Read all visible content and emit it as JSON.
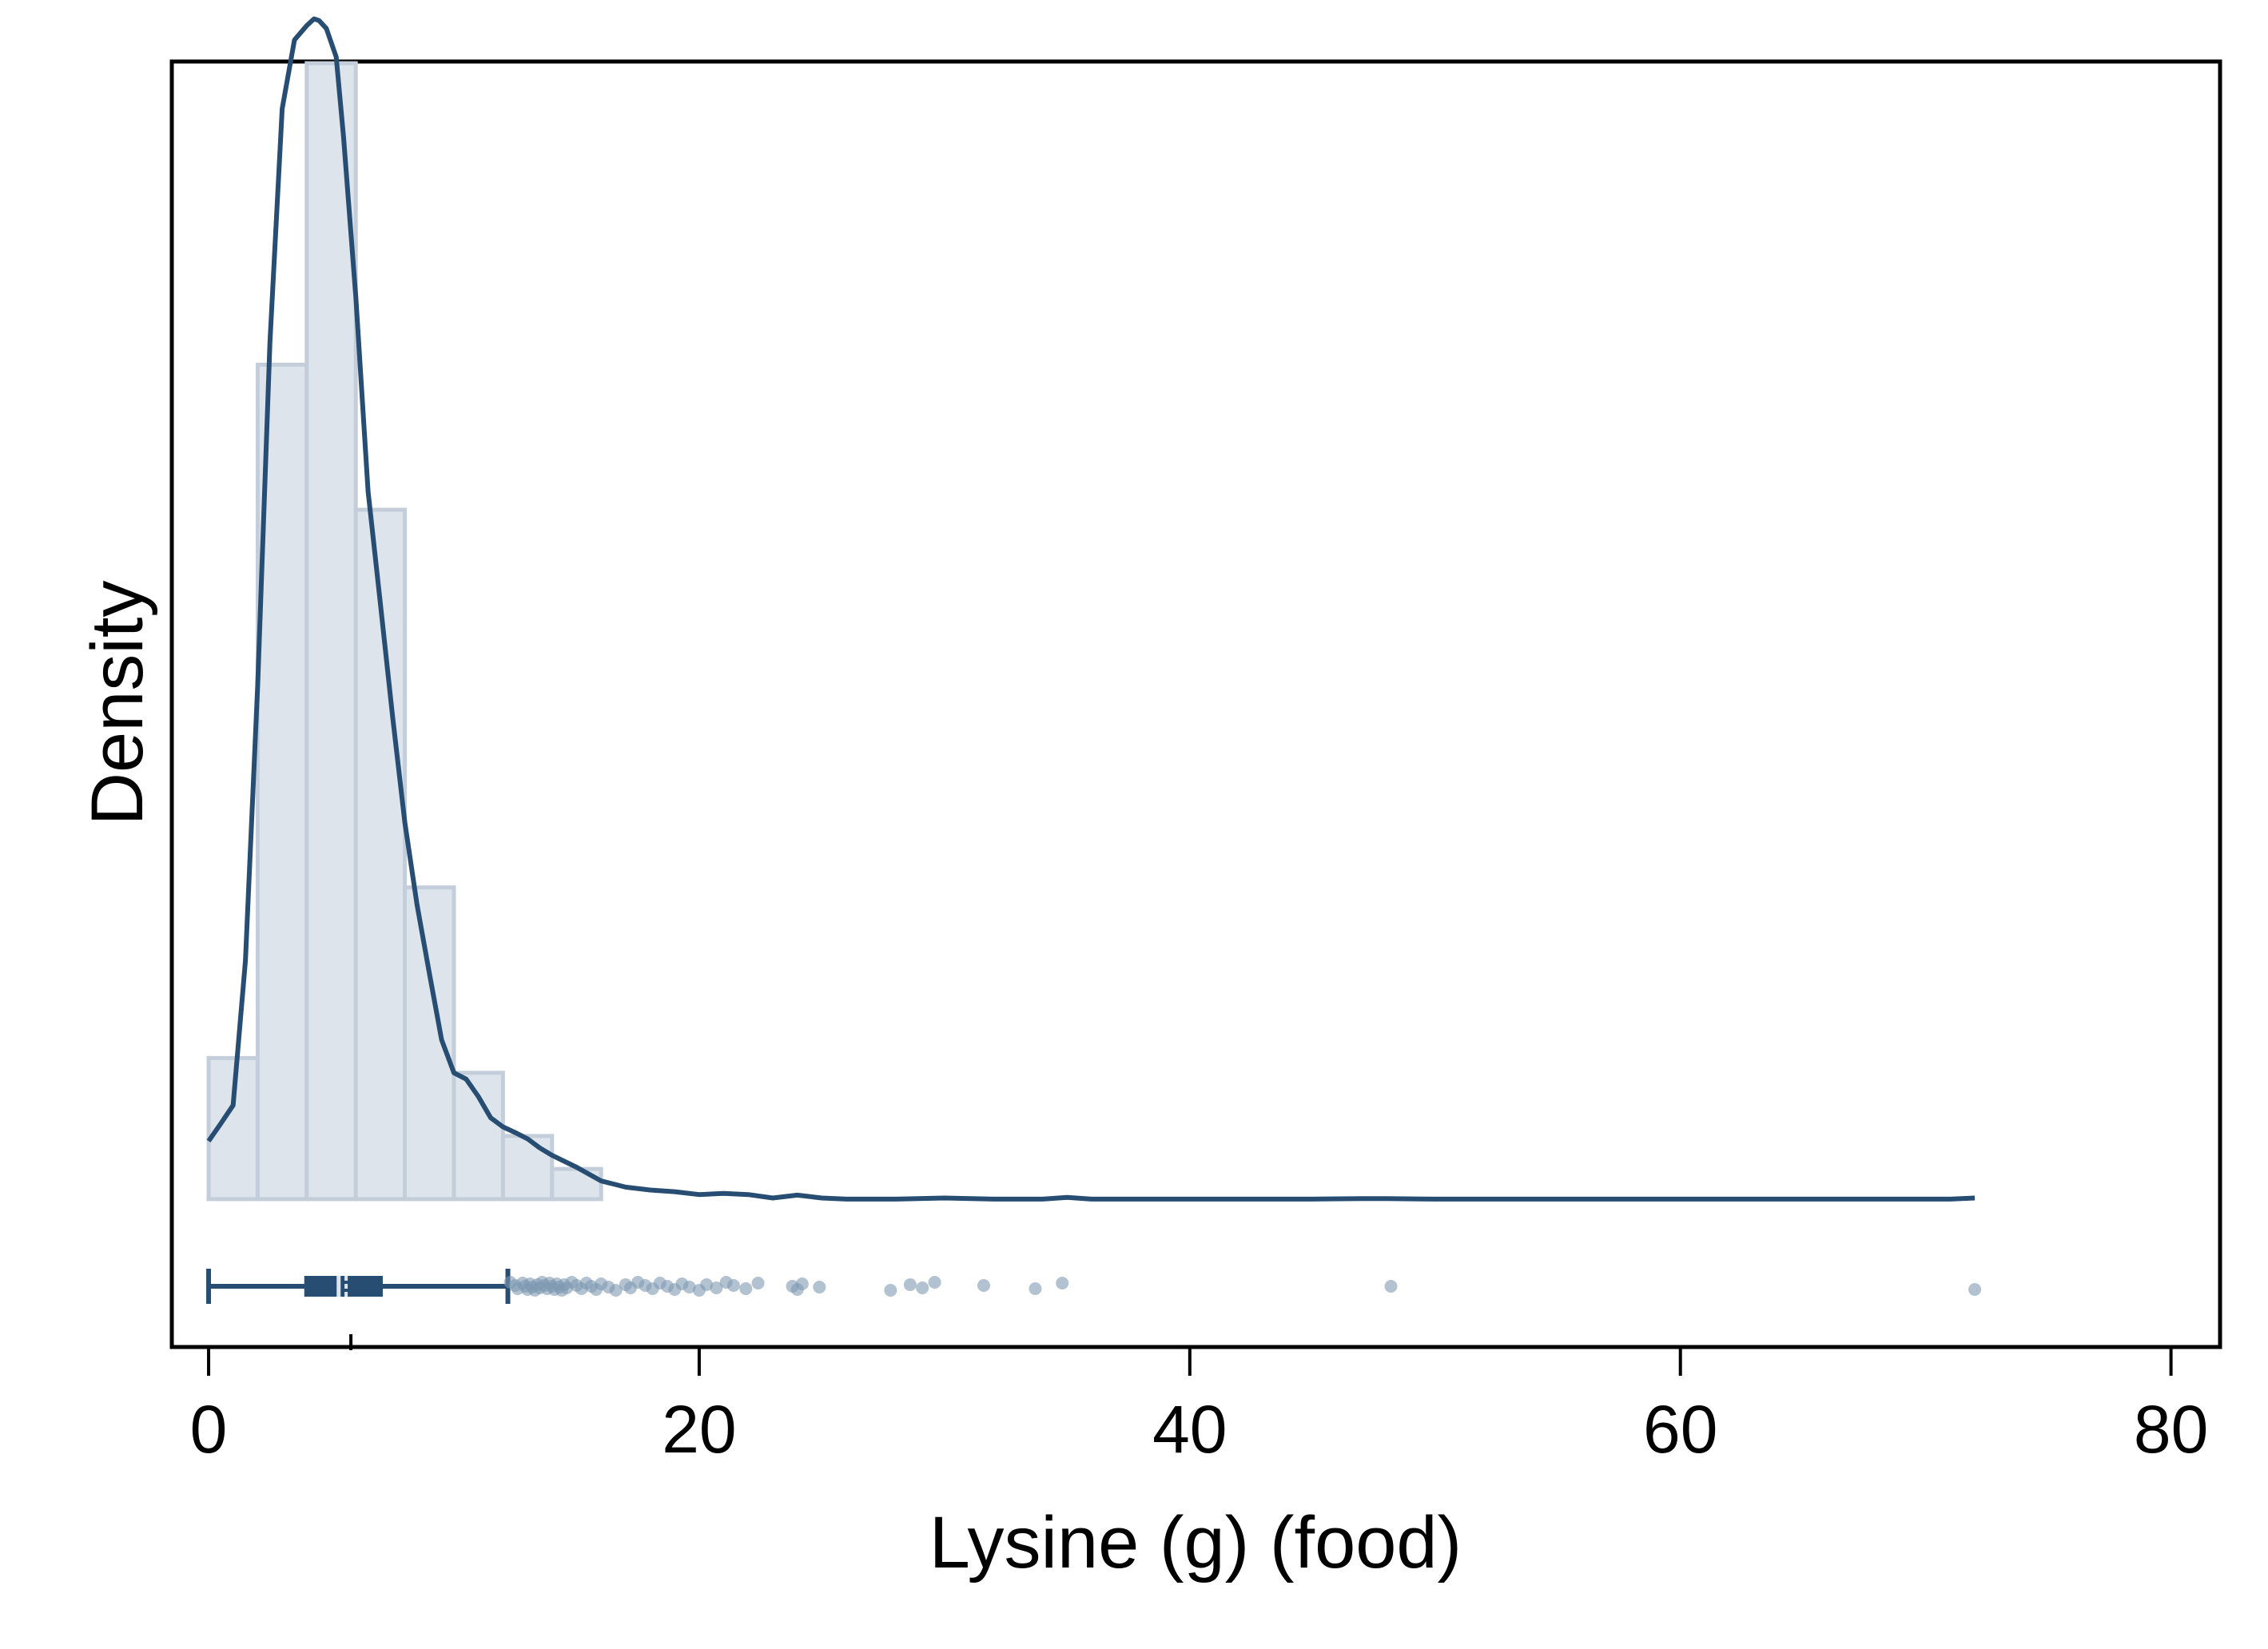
{
  "chart_data": {
    "type": "histogram",
    "xlabel": "Lysine (g) (food)",
    "ylabel": "Density",
    "xlim": [
      -1.5,
      82
    ],
    "ylim": [
      -0.026,
      0.2
    ],
    "x_ticks": [
      0,
      20,
      40,
      60,
      80
    ],
    "y_ticks_shown": false,
    "grid": false,
    "histogram": {
      "bin_width": 2,
      "bins": [
        {
          "x0": 0,
          "x1": 2,
          "density": 0.0248
        },
        {
          "x0": 2,
          "x1": 4,
          "density": 0.1467
        },
        {
          "x0": 4,
          "x1": 6,
          "density": 0.1997
        },
        {
          "x0": 6,
          "x1": 8,
          "density": 0.1212
        },
        {
          "x0": 8,
          "x1": 10,
          "density": 0.0548
        },
        {
          "x0": 10,
          "x1": 12,
          "density": 0.0222
        },
        {
          "x0": 12,
          "x1": 14,
          "density": 0.0111
        },
        {
          "x0": 14,
          "x1": 16,
          "density": 0.0053
        }
      ]
    },
    "density_curve": {
      "x": [
        0,
        0.5,
        1,
        1.5,
        2,
        2.5,
        3,
        3.5,
        4,
        4.3,
        4.5,
        4.8,
        5.2,
        5.5,
        6,
        6.5,
        7,
        7.5,
        8,
        8.5,
        9,
        9.5,
        10,
        10.5,
        11,
        11.5,
        12,
        12.5,
        13,
        13.5,
        14,
        15,
        16,
        17,
        18,
        19,
        20,
        21,
        22,
        23,
        24,
        25,
        26,
        28,
        30,
        32,
        34,
        35,
        36,
        40,
        45,
        47,
        48,
        50,
        55,
        60,
        65,
        70,
        71,
        72
      ],
      "y": [
        0.0102,
        0.0133,
        0.0165,
        0.0419,
        0.0902,
        0.1507,
        0.1917,
        0.2038,
        0.2063,
        0.2075,
        0.2072,
        0.2058,
        0.2008,
        0.1867,
        0.1587,
        0.1244,
        0.1048,
        0.0848,
        0.0662,
        0.0517,
        0.0397,
        0.028,
        0.0222,
        0.0211,
        0.018,
        0.0143,
        0.0127,
        0.0117,
        0.0106,
        0.009,
        0.0077,
        0.0056,
        0.0032,
        0.0021,
        0.0016,
        0.0013,
        0.0008,
        0.001,
        0.0008,
        0.0002,
        0.0007,
        0.0002,
        0.0,
        0.0,
        0.0002,
        0.0,
        0.0,
        0.0003,
        0.0,
        0.0,
        0.0,
        0.0001,
        0.0001,
        0.0,
        0.0,
        0.0,
        0.0,
        0.0,
        0.0,
        0.0002
      ]
    },
    "boxplot": {
      "min": 0,
      "q1": 3.9,
      "median": 5.3,
      "mean": 5.8,
      "q3": 7.1,
      "upper_whisker": 12.2,
      "outliers": [
        12.3,
        12.5,
        12.6,
        12.8,
        12.9,
        13.0,
        13.1,
        13.2,
        13.3,
        13.4,
        13.5,
        13.6,
        13.7,
        13.8,
        13.9,
        14.0,
        14.1,
        14.2,
        14.3,
        14.4,
        14.5,
        14.6,
        14.8,
        15.0,
        15.2,
        15.4,
        15.6,
        15.8,
        16.0,
        16.3,
        16.6,
        17.0,
        17.2,
        17.5,
        17.8,
        18.1,
        18.4,
        18.7,
        19.0,
        19.3,
        19.6,
        20.0,
        20.3,
        20.7,
        21.1,
        21.4,
        21.9,
        22.4,
        23.8,
        24.0,
        24.2,
        24.9,
        27.8,
        28.6,
        29.1,
        29.6,
        31.6,
        33.7,
        34.8,
        48.2,
        72.0
      ]
    },
    "colors": {
      "bar_fill": "#dde4eb",
      "bar_edge": "#c3ceda",
      "curve": "#274d72",
      "box": "#274d72",
      "outlier": "#7f99b3",
      "frame": "#000000"
    }
  }
}
